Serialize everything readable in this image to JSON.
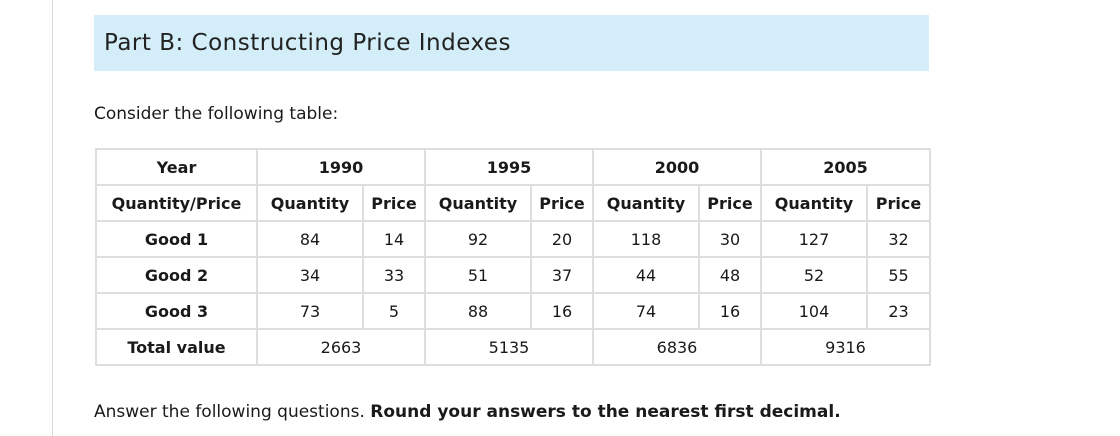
{
  "header": {
    "title": "Part B: Constructing Price Indexes"
  },
  "intro": "Consider the following table:",
  "table": {
    "year_label": "Year",
    "years": [
      "1990",
      "1995",
      "2000",
      "2005"
    ],
    "qp_label": "Quantity/Price",
    "quantity_label": "Quantity",
    "price_label": "Price",
    "goods": [
      {
        "name": "Good 1",
        "values": [
          "84",
          "14",
          "92",
          "20",
          "118",
          "30",
          "127",
          "32"
        ]
      },
      {
        "name": "Good 2",
        "values": [
          "34",
          "33",
          "51",
          "37",
          "44",
          "48",
          "52",
          "55"
        ]
      },
      {
        "name": "Good 3",
        "values": [
          "73",
          "5",
          "88",
          "16",
          "74",
          "16",
          "104",
          "23"
        ]
      }
    ],
    "total_label": "Total value",
    "totals": [
      "2663",
      "5135",
      "6836",
      "9316"
    ]
  },
  "answer": {
    "text": "Answer the following questions. ",
    "bold": "Round your answers to the nearest first decimal."
  }
}
